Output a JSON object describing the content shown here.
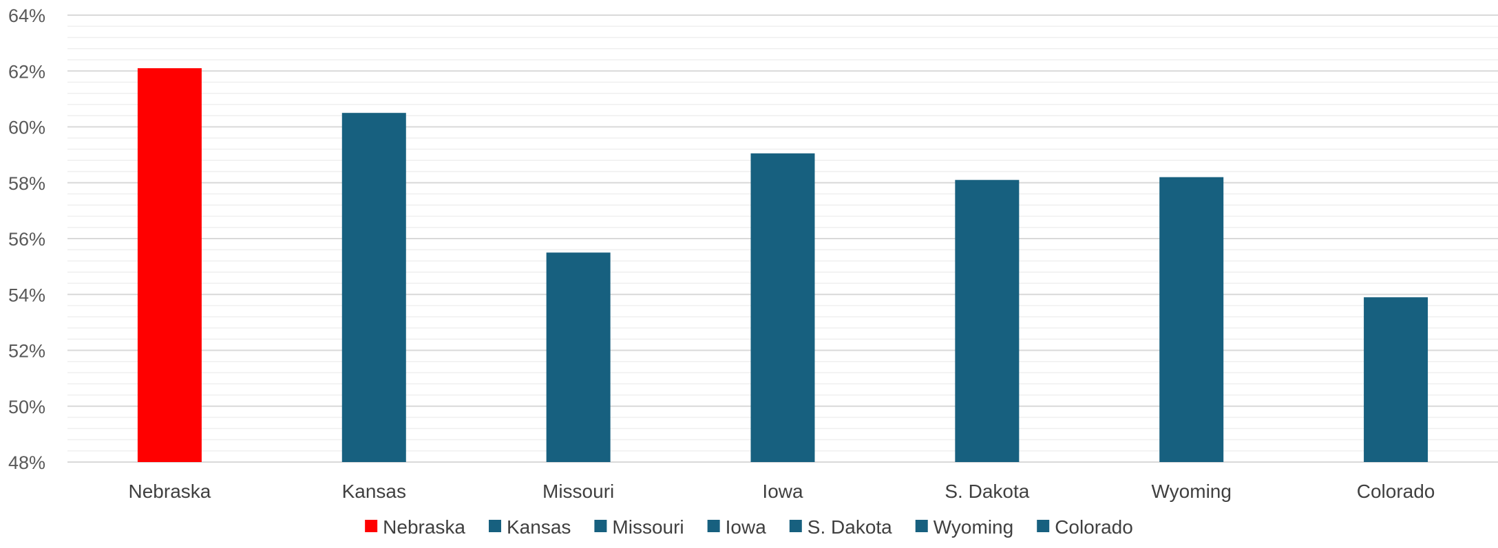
{
  "chart_data": {
    "type": "bar",
    "categories": [
      "Nebraska",
      "Kansas",
      "Missouri",
      "Iowa",
      "S. Dakota",
      "Wyoming",
      "Colorado"
    ],
    "values": [
      62.1,
      60.5,
      55.5,
      59.05,
      58.1,
      58.2,
      53.9
    ],
    "value_unit": "%",
    "ylim": [
      48,
      64
    ],
    "ytick_step": 2,
    "ytick_labels": [
      "48%",
      "50%",
      "52%",
      "54%",
      "56%",
      "58%",
      "60%",
      "62%",
      "64%"
    ],
    "minor_gridlines": true,
    "legend_position": "bottom",
    "legend_entries": [
      "Nebraska",
      "Kansas",
      "Missouri",
      "Iowa",
      "S. Dakota",
      "Wyoming",
      "Colorado"
    ],
    "colors": {
      "highlight": "#ff0000",
      "default": "#17607f",
      "gridline": "#d9d9d9",
      "minor_gridline": "#efefef"
    },
    "highlight_category": "Nebraska",
    "title": "",
    "xlabel": "",
    "ylabel": ""
  }
}
